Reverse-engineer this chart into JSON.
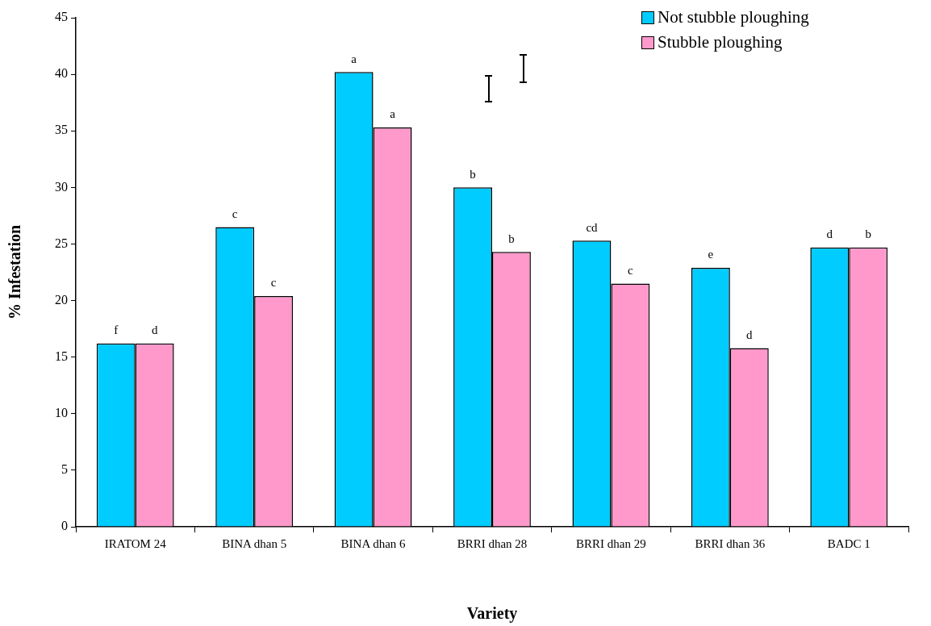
{
  "chart_data": {
    "type": "bar",
    "xlabel": "Variety",
    "ylabel": "% Infestation",
    "categories": [
      "IRATOM 24",
      "BINA dhan 5",
      "BINA dhan 6",
      "BRRI dhan 28",
      "BRRI dhan 29",
      "BRRI dhan 36",
      "BADC 1"
    ],
    "series": [
      {
        "name": "Not stubble ploughing",
        "color": "#00ccff",
        "values": [
          16.2,
          26.5,
          40.2,
          30.0,
          25.3,
          22.9,
          24.7
        ],
        "value_labels": [
          "f",
          "c",
          "a",
          "b",
          "cd",
          "e",
          "d"
        ]
      },
      {
        "name": "Stubble ploughing",
        "color": "#ff99cc",
        "values": [
          16.2,
          20.4,
          35.3,
          24.3,
          21.5,
          15.8,
          24.7
        ],
        "value_labels": [
          "d",
          "c",
          "a",
          "b",
          "c",
          "d",
          "b"
        ]
      }
    ],
    "ylim": [
      0,
      45
    ],
    "yticks": [
      0,
      5,
      10,
      15,
      20,
      25,
      30,
      35,
      40,
      45
    ],
    "grid": false,
    "legend": "top right"
  }
}
